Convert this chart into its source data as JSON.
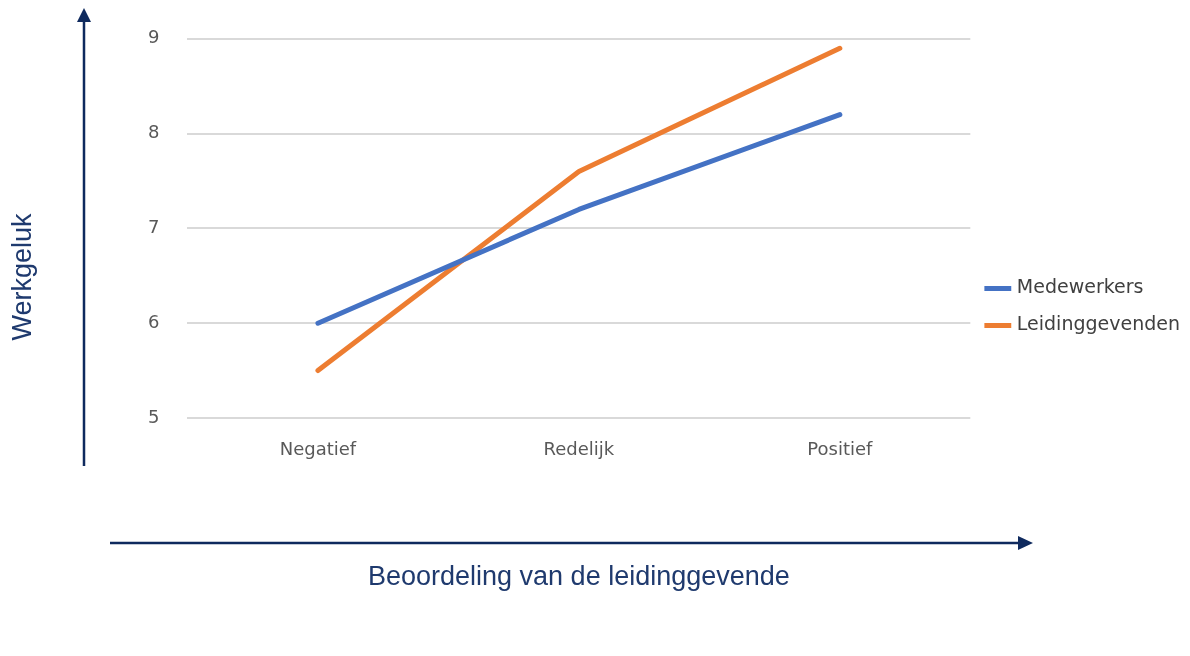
{
  "chart_data": {
    "type": "line",
    "xlabel": "Beoordeling van de leidinggevende",
    "ylabel": "Werkgeluk",
    "categories": [
      "Negatief",
      "Redelijk",
      "Positief"
    ],
    "series": [
      {
        "name": "Medewerkers",
        "color": "#4472c4",
        "values": [
          6.0,
          7.2,
          8.2
        ]
      },
      {
        "name": "Leidinggevenden",
        "color": "#ed7d31",
        "values": [
          5.5,
          7.6,
          8.9
        ]
      }
    ],
    "ylim": [
      5,
      9
    ],
    "yticks": [
      5,
      6,
      7,
      8,
      9
    ],
    "grid": "y",
    "legend": "right",
    "marker": "none",
    "line_style": "solid"
  }
}
